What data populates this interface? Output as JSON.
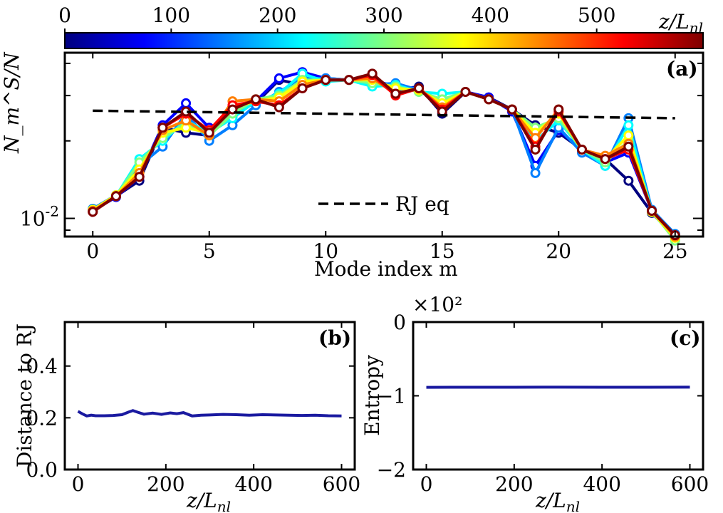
{
  "colorbar": {
    "ticks": [
      "0",
      "100",
      "200",
      "300",
      "400",
      "500"
    ],
    "tick_values": [
      0,
      100,
      200,
      300,
      400,
      500
    ],
    "range": [
      0,
      600
    ],
    "label_main": "z/L",
    "label_sub": "nl",
    "colors": [
      "#00007f",
      "#0000ff",
      "#007fff",
      "#00ffff",
      "#7fff7f",
      "#ffff00",
      "#ff7f00",
      "#ff0000",
      "#7f0000"
    ]
  },
  "chart_data": [
    {
      "id": "a",
      "type": "line",
      "panel_label": "(a)",
      "xlabel": "Mode index m",
      "ylabel": "N_m^S/N",
      "yscale": "log",
      "xlim": [
        -1.2,
        26.2
      ],
      "ylim": [
        0.0085,
        0.044
      ],
      "xticks": [
        0,
        5,
        10,
        15,
        20,
        25
      ],
      "ytick_label": "10^-2",
      "ytick_value": 0.01,
      "x": [
        0,
        1,
        2,
        3,
        4,
        5,
        6,
        7,
        8,
        9,
        10,
        11,
        12,
        13,
        14,
        15,
        16,
        17,
        18,
        19,
        20,
        21,
        22,
        23,
        24,
        25
      ],
      "series_note": "one curve per propagation distance z/L_nl, colored by colorbar",
      "series": [
        {
          "name": "z/L_nl=0",
          "z": 0,
          "values": [
            0.0108,
            0.0122,
            0.014,
            0.0225,
            0.0215,
            0.021,
            0.026,
            0.028,
            0.0345,
            0.033,
            0.0345,
            0.0345,
            0.0355,
            0.0315,
            0.0325,
            0.0255,
            0.031,
            0.0295,
            0.0265,
            0.023,
            0.0215,
            0.0185,
            0.017,
            0.014,
            0.0105,
            0.0085
          ]
        },
        {
          "name": "z/L_nl=75",
          "z": 75,
          "values": [
            0.0107,
            0.0121,
            0.0145,
            0.023,
            0.028,
            0.0225,
            0.025,
            0.0285,
            0.035,
            0.037,
            0.035,
            0.0345,
            0.0345,
            0.0325,
            0.032,
            0.0265,
            0.031,
            0.0295,
            0.026,
            0.016,
            0.022,
            0.0185,
            0.0165,
            0.018,
            0.0107,
            0.0086
          ]
        },
        {
          "name": "z/L_nl=150",
          "z": 150,
          "values": [
            0.0109,
            0.0123,
            0.016,
            0.019,
            0.0255,
            0.02,
            0.023,
            0.0275,
            0.031,
            0.035,
            0.035,
            0.0345,
            0.033,
            0.0335,
            0.0315,
            0.0285,
            0.031,
            0.029,
            0.0265,
            0.015,
            0.0225,
            0.018,
            0.016,
            0.0245,
            0.0108,
            0.0087
          ]
        },
        {
          "name": "z/L_nl=225",
          "z": 225,
          "values": [
            0.0108,
            0.0122,
            0.017,
            0.02,
            0.024,
            0.0215,
            0.0245,
            0.0285,
            0.0305,
            0.0365,
            0.034,
            0.0345,
            0.0325,
            0.033,
            0.031,
            0.0305,
            0.031,
            0.029,
            0.0265,
            0.02,
            0.024,
            0.0185,
            0.016,
            0.023,
            0.0106,
            0.0083
          ]
        },
        {
          "name": "z/L_nl=300",
          "z": 300,
          "values": [
            0.0107,
            0.0122,
            0.0165,
            0.0205,
            0.0235,
            0.021,
            0.0255,
            0.029,
            0.03,
            0.0345,
            0.0345,
            0.0345,
            0.0335,
            0.0325,
            0.031,
            0.029,
            0.031,
            0.029,
            0.0265,
            0.0225,
            0.0245,
            0.0185,
            0.0165,
            0.02,
            0.0107,
            0.0082
          ]
        },
        {
          "name": "z/L_nl=375",
          "z": 375,
          "values": [
            0.0108,
            0.0123,
            0.0155,
            0.0215,
            0.0225,
            0.0215,
            0.027,
            0.0285,
            0.0295,
            0.034,
            0.0345,
            0.0345,
            0.0345,
            0.032,
            0.0315,
            0.028,
            0.031,
            0.029,
            0.0265,
            0.0215,
            0.0255,
            0.0185,
            0.017,
            0.021,
            0.0106,
            0.0084
          ]
        },
        {
          "name": "z/L_nl=450",
          "z": 450,
          "values": [
            0.0107,
            0.0122,
            0.015,
            0.022,
            0.024,
            0.021,
            0.0285,
            0.029,
            0.0285,
            0.033,
            0.0345,
            0.0345,
            0.035,
            0.0305,
            0.032,
            0.027,
            0.031,
            0.029,
            0.0265,
            0.0205,
            0.0265,
            0.0185,
            0.0175,
            0.0195,
            0.0107,
            0.0085
          ]
        },
        {
          "name": "z/L_nl=525",
          "z": 525,
          "values": [
            0.0106,
            0.0122,
            0.0145,
            0.0225,
            0.0255,
            0.022,
            0.0275,
            0.0285,
            0.0275,
            0.032,
            0.0345,
            0.0345,
            0.036,
            0.03,
            0.032,
            0.0265,
            0.031,
            0.029,
            0.0265,
            0.019,
            0.026,
            0.0185,
            0.017,
            0.0185,
            0.0107,
            0.0086
          ]
        },
        {
          "name": "z/L_nl=600",
          "z": 600,
          "values": [
            0.0106,
            0.0122,
            0.0145,
            0.0225,
            0.026,
            0.0215,
            0.0265,
            0.029,
            0.027,
            0.032,
            0.0345,
            0.0345,
            0.0365,
            0.0305,
            0.032,
            0.026,
            0.031,
            0.029,
            0.0265,
            0.0185,
            0.0265,
            0.0185,
            0.017,
            0.019,
            0.0107,
            0.0086
          ]
        }
      ],
      "reference_line": {
        "name": "RJ eq",
        "x": [
          0,
          25
        ],
        "values": [
          0.0262,
          0.0245
        ]
      },
      "legend": {
        "label": "RJ eq",
        "placement": "bottom-center"
      }
    },
    {
      "id": "b",
      "type": "line",
      "panel_label": "(b)",
      "xlabel": "z/L",
      "xlabel_sub": "nl",
      "ylabel": "Distance to RJ",
      "xlim": [
        -30,
        630
      ],
      "ylim": [
        0.0,
        0.57
      ],
      "xticks": [
        0,
        200,
        400,
        600
      ],
      "yticks": [
        0.0,
        0.2,
        0.4
      ],
      "ytick_labels": [
        "0.0",
        "0.2",
        "0.4"
      ],
      "series": [
        {
          "name": "distance",
          "color": "#1a1aa0",
          "x": [
            0,
            10,
            20,
            30,
            40,
            60,
            80,
            100,
            115,
            125,
            135,
            150,
            170,
            190,
            210,
            225,
            240,
            260,
            280,
            300,
            330,
            360,
            390,
            420,
            450,
            480,
            510,
            540,
            570,
            600
          ],
          "values": [
            0.225,
            0.215,
            0.207,
            0.21,
            0.208,
            0.208,
            0.209,
            0.212,
            0.222,
            0.228,
            0.222,
            0.214,
            0.218,
            0.213,
            0.219,
            0.216,
            0.22,
            0.207,
            0.21,
            0.211,
            0.213,
            0.212,
            0.21,
            0.212,
            0.211,
            0.21,
            0.209,
            0.21,
            0.208,
            0.207
          ]
        }
      ]
    },
    {
      "id": "c",
      "type": "line",
      "panel_label": "(c)",
      "xlabel": "z/L",
      "xlabel_sub": "nl",
      "ylabel": "Entropy",
      "offset_text": "×10²",
      "xlim": [
        -30,
        630
      ],
      "ylim": [
        -2.0,
        0.0
      ],
      "xticks": [
        0,
        200,
        400,
        600
      ],
      "yticks": [
        0,
        -1,
        -2
      ],
      "ytick_labels": [
        "0",
        "−1",
        "−2"
      ],
      "series": [
        {
          "name": "entropy",
          "color": "#1a1aa0",
          "x": [
            0,
            100,
            200,
            300,
            400,
            500,
            600
          ],
          "values": [
            -0.885,
            -0.884,
            -0.884,
            -0.883,
            -0.884,
            -0.884,
            -0.883
          ]
        }
      ]
    }
  ]
}
